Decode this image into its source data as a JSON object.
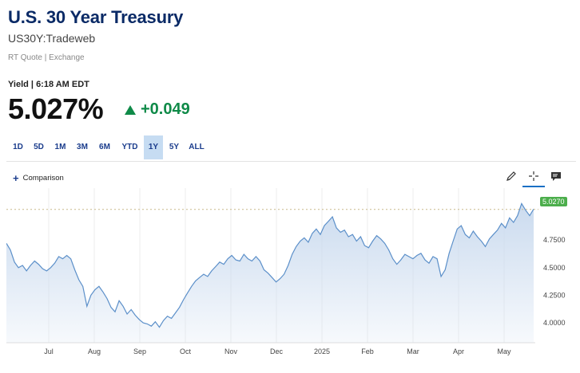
{
  "header": {
    "title": "U.S. 30 Year Treasury",
    "symbol": "US30Y:Tradeweb",
    "rt_quote": "RT Quote | Exchange"
  },
  "quote": {
    "yield_label": "Yield | 6:18 AM EDT",
    "value": "5.027%",
    "change": "+0.049",
    "change_color": "#0f8a48"
  },
  "ranges": [
    {
      "label": "1D"
    },
    {
      "label": "5D"
    },
    {
      "label": "1M"
    },
    {
      "label": "3M"
    },
    {
      "label": "6M"
    },
    {
      "label": "YTD"
    },
    {
      "label": "1Y",
      "active": true
    },
    {
      "label": "5Y"
    },
    {
      "label": "ALL"
    }
  ],
  "toolbar": {
    "comparison_label": "Comparison",
    "icons": [
      "pencil-icon",
      "crosshair-icon",
      "chat-icon"
    ]
  },
  "chart_data": {
    "type": "area",
    "x_tick_labels": [
      "Jul",
      "Aug",
      "Sep",
      "Oct",
      "Nov",
      "Dec",
      "2025",
      "Feb",
      "Mar",
      "Apr",
      "May"
    ],
    "y_tick_labels": [
      "4.0000",
      "4.2500",
      "4.5000",
      "4.7500"
    ],
    "y_ticks": [
      4.0,
      4.25,
      4.5,
      4.75
    ],
    "last_value_label": "5.0270",
    "last_value": 5.027,
    "ylim": [
      3.82,
      5.22
    ],
    "grid": "vertical",
    "series_color": "#5b8fc9",
    "fill_color": "#c8d9ee",
    "points": [
      [
        0,
        4.72
      ],
      [
        1,
        4.66
      ],
      [
        2,
        4.55
      ],
      [
        3,
        4.5
      ],
      [
        4,
        4.52
      ],
      [
        5,
        4.47
      ],
      [
        6,
        4.52
      ],
      [
        7,
        4.56
      ],
      [
        8,
        4.53
      ],
      [
        9,
        4.49
      ],
      [
        10,
        4.47
      ],
      [
        11,
        4.5
      ],
      [
        12,
        4.54
      ],
      [
        13,
        4.6
      ],
      [
        14,
        4.58
      ],
      [
        15,
        4.61
      ],
      [
        16,
        4.58
      ],
      [
        17,
        4.48
      ],
      [
        18,
        4.39
      ],
      [
        19,
        4.33
      ],
      [
        20,
        4.15
      ],
      [
        21,
        4.25
      ],
      [
        22,
        4.3
      ],
      [
        23,
        4.33
      ],
      [
        24,
        4.28
      ],
      [
        25,
        4.22
      ],
      [
        26,
        4.14
      ],
      [
        27,
        4.1
      ],
      [
        28,
        4.2
      ],
      [
        29,
        4.15
      ],
      [
        30,
        4.08
      ],
      [
        31,
        4.12
      ],
      [
        32,
        4.07
      ],
      [
        33,
        4.03
      ],
      [
        34,
        4.0
      ],
      [
        35,
        3.99
      ],
      [
        36,
        3.97
      ],
      [
        37,
        4.01
      ],
      [
        38,
        3.96
      ],
      [
        39,
        4.02
      ],
      [
        40,
        4.06
      ],
      [
        41,
        4.04
      ],
      [
        42,
        4.09
      ],
      [
        43,
        4.14
      ],
      [
        44,
        4.21
      ],
      [
        45,
        4.27
      ],
      [
        46,
        4.33
      ],
      [
        47,
        4.38
      ],
      [
        48,
        4.41
      ],
      [
        49,
        4.44
      ],
      [
        50,
        4.42
      ],
      [
        51,
        4.47
      ],
      [
        52,
        4.51
      ],
      [
        53,
        4.55
      ],
      [
        54,
        4.53
      ],
      [
        55,
        4.58
      ],
      [
        56,
        4.61
      ],
      [
        57,
        4.57
      ],
      [
        58,
        4.56
      ],
      [
        59,
        4.62
      ],
      [
        60,
        4.58
      ],
      [
        61,
        4.56
      ],
      [
        62,
        4.6
      ],
      [
        63,
        4.56
      ],
      [
        64,
        4.48
      ],
      [
        65,
        4.45
      ],
      [
        66,
        4.41
      ],
      [
        67,
        4.37
      ],
      [
        68,
        4.4
      ],
      [
        69,
        4.44
      ],
      [
        70,
        4.52
      ],
      [
        71,
        4.62
      ],
      [
        72,
        4.69
      ],
      [
        73,
        4.74
      ],
      [
        74,
        4.77
      ],
      [
        75,
        4.73
      ],
      [
        76,
        4.81
      ],
      [
        77,
        4.85
      ],
      [
        78,
        4.8
      ],
      [
        79,
        4.88
      ],
      [
        80,
        4.92
      ],
      [
        81,
        4.96
      ],
      [
        82,
        4.86
      ],
      [
        83,
        4.82
      ],
      [
        84,
        4.84
      ],
      [
        85,
        4.78
      ],
      [
        86,
        4.8
      ],
      [
        87,
        4.74
      ],
      [
        88,
        4.78
      ],
      [
        89,
        4.7
      ],
      [
        90,
        4.68
      ],
      [
        91,
        4.74
      ],
      [
        92,
        4.79
      ],
      [
        93,
        4.76
      ],
      [
        94,
        4.72
      ],
      [
        95,
        4.66
      ],
      [
        96,
        4.58
      ],
      [
        97,
        4.53
      ],
      [
        98,
        4.57
      ],
      [
        99,
        4.62
      ],
      [
        100,
        4.6
      ],
      [
        101,
        4.58
      ],
      [
        102,
        4.61
      ],
      [
        103,
        4.63
      ],
      [
        104,
        4.57
      ],
      [
        105,
        4.54
      ],
      [
        106,
        4.6
      ],
      [
        107,
        4.58
      ],
      [
        108,
        4.42
      ],
      [
        109,
        4.48
      ],
      [
        110,
        4.63
      ],
      [
        111,
        4.74
      ],
      [
        112,
        4.85
      ],
      [
        113,
        4.88
      ],
      [
        114,
        4.8
      ],
      [
        115,
        4.77
      ],
      [
        116,
        4.83
      ],
      [
        117,
        4.78
      ],
      [
        118,
        4.74
      ],
      [
        119,
        4.69
      ],
      [
        120,
        4.76
      ],
      [
        121,
        4.8
      ],
      [
        122,
        4.84
      ],
      [
        123,
        4.9
      ],
      [
        124,
        4.86
      ],
      [
        125,
        4.95
      ],
      [
        126,
        4.91
      ],
      [
        127,
        4.97
      ],
      [
        128,
        5.08
      ],
      [
        129,
        5.02
      ],
      [
        130,
        4.97
      ],
      [
        131,
        5.03
      ]
    ]
  }
}
